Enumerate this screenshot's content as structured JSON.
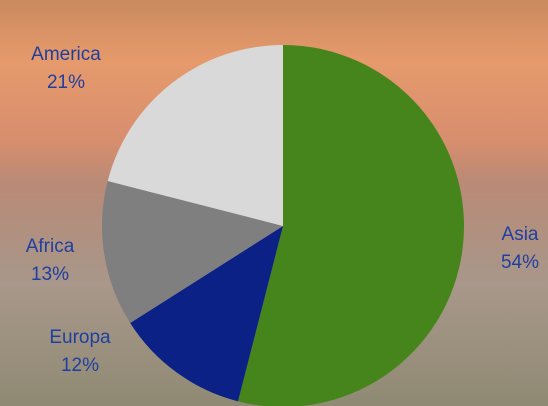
{
  "chart_data": {
    "type": "pie",
    "categories": [
      "Asia",
      "Europa",
      "Africa",
      "America"
    ],
    "values": [
      54,
      12,
      13,
      21
    ],
    "value_labels": [
      "54%",
      "12%",
      "13%",
      "21%"
    ],
    "colors": [
      "#45851b",
      "#0b2185",
      "#7f7f7f",
      "#d9d9d9"
    ]
  }
}
